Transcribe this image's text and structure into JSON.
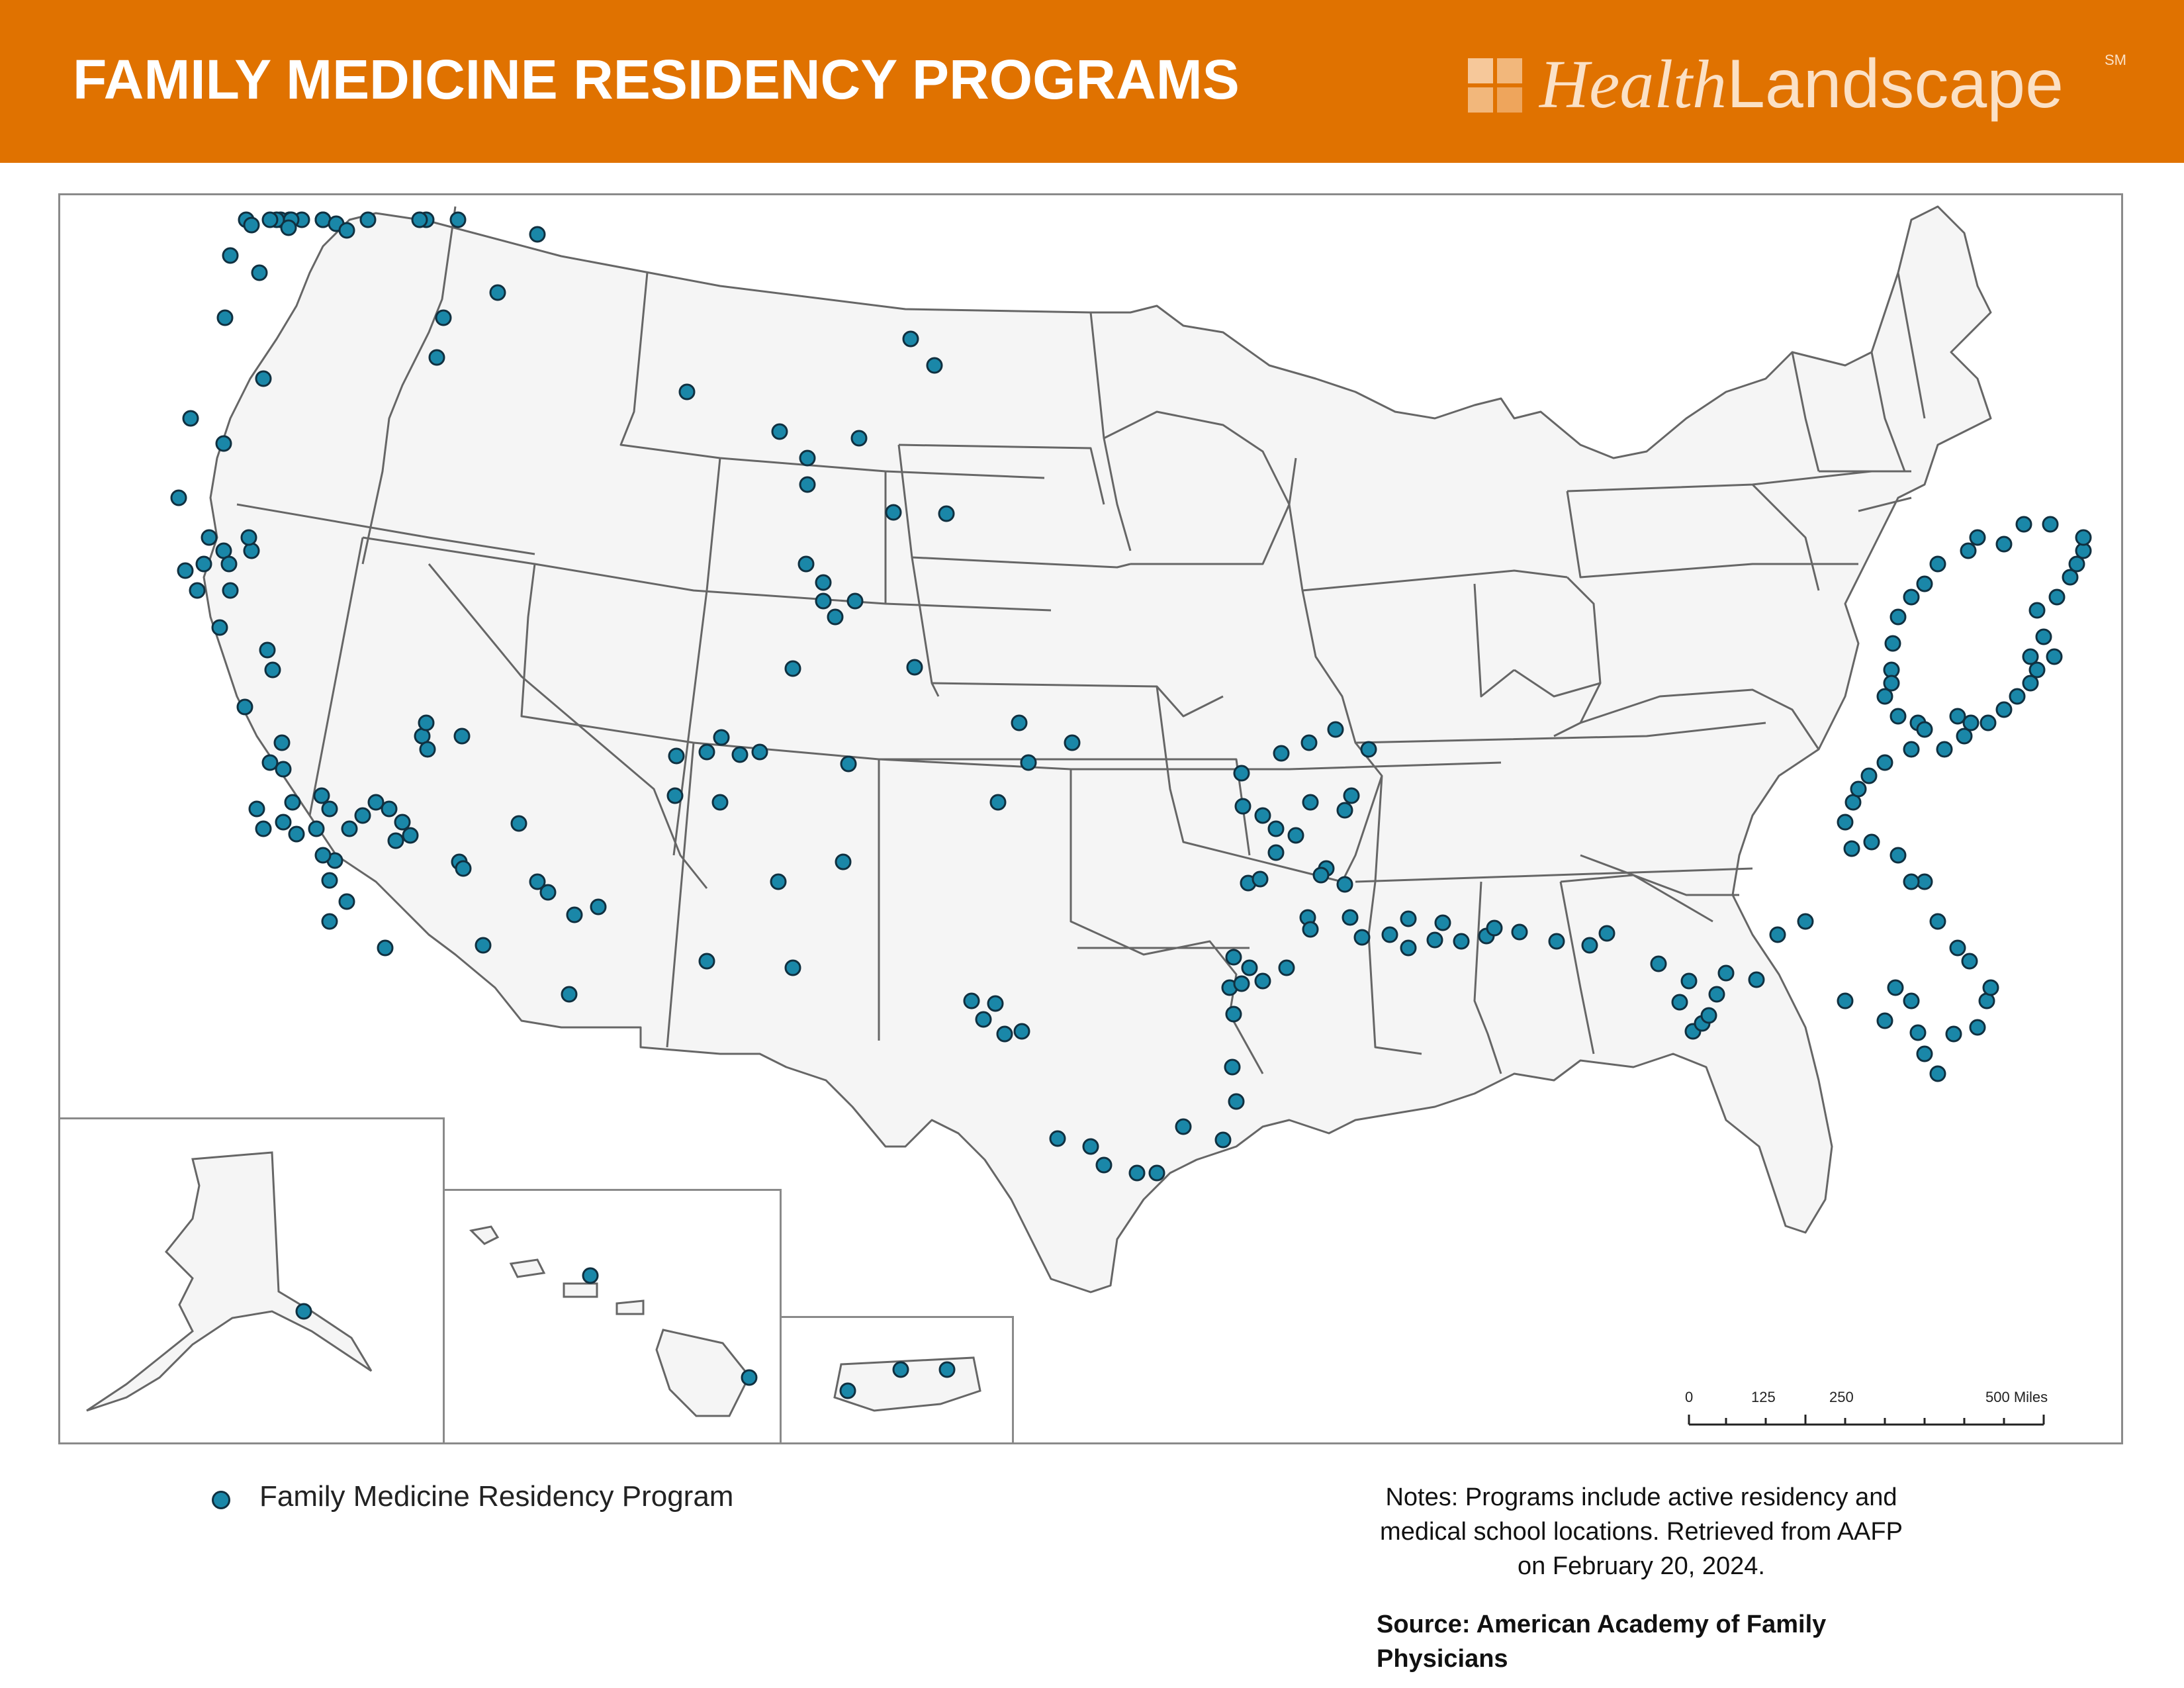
{
  "header": {
    "title": "FAMILY MEDICINE RESIDENCY PROGRAMS",
    "brand_part1": "Health",
    "brand_part2": "Landscape",
    "brand_mark": "SM",
    "color": "#e07200"
  },
  "map": {
    "state_fill": "#f5f5f5",
    "state_stroke": "#666666",
    "marker_color": "#1a87a8",
    "marker_outline": "#103040",
    "insets": [
      "Alaska",
      "Hawaii",
      "Puerto Rico"
    ]
  },
  "legend": {
    "label": "Family Medicine Residency Program"
  },
  "scale_bar": {
    "labels": [
      "0",
      "125",
      "250",
      "500 Miles"
    ]
  },
  "notes": {
    "line1": "Notes:  Programs include active residency and",
    "line2": "medical school locations. Retrieved from AAFP",
    "line3": "on February 20, 2024."
  },
  "source": {
    "line1": "Source:  American Academy of Family",
    "line2": "Physicians"
  }
}
